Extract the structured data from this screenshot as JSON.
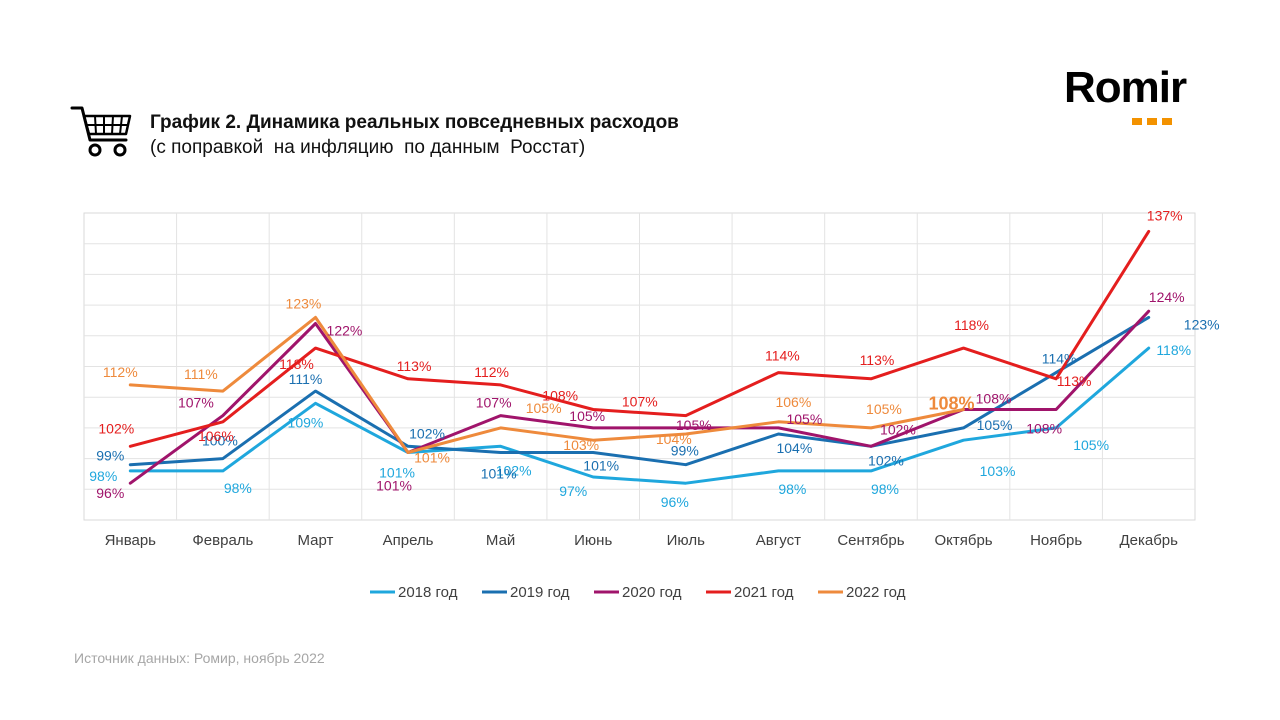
{
  "header": {
    "title_line1": "График 2. Динамика реальных повседневных расходов",
    "title_line2": "(с поправкой  на инфляцию  по данным  Росстат)"
  },
  "logo": {
    "text": "Romir",
    "dot_color": "#f39200"
  },
  "source": "Источник данных: Ромир, ноябрь 2022",
  "icons": {
    "header": "shopping-cart-icon"
  },
  "chart_data": {
    "type": "line",
    "title": "График 2. Динамика реальных повседневных расходов",
    "subtitle": "(с поправкой  на инфляцию  по данным  Росстат)",
    "xlabel": "",
    "ylabel": "",
    "ylim": [
      90,
      140
    ],
    "grid": true,
    "legend_position": "bottom",
    "categories": [
      "Январь",
      "Февраль",
      "Март",
      "Апрель",
      "Май",
      "Июнь",
      "Июль",
      "Август",
      "Сентябрь",
      "Октябрь",
      "Ноябрь",
      "Декабрь"
    ],
    "series": [
      {
        "name": "2018 год",
        "color": "#1fa7dd",
        "values": [
          98,
          98,
          109,
          101,
          102,
          97,
          96,
          98,
          98,
          103,
          105,
          118
        ],
        "labels": [
          "98%",
          "98%",
          "109%",
          "101%",
          "102%",
          "97%",
          "96%",
          "98%",
          "98%",
          "103%",
          "105%",
          "118%"
        ]
      },
      {
        "name": "2019 год",
        "color": "#1a6fb0",
        "values": [
          99,
          100,
          111,
          102,
          101,
          101,
          99,
          104,
          102,
          105,
          114,
          123
        ],
        "labels": [
          "99%",
          "100%",
          "111%",
          "102%",
          "101%",
          "101%",
          "99%",
          "104%",
          "102%",
          "105%",
          "114%",
          "123%"
        ]
      },
      {
        "name": "2020 год",
        "color": "#a0146b",
        "values": [
          96,
          107,
          122,
          101,
          107,
          105,
          105,
          105,
          102,
          108,
          108,
          124
        ],
        "labels": [
          "96%",
          "107%",
          "122%",
          "101%",
          "107%",
          "105%",
          "105%",
          "105%",
          "102%",
          "108%",
          "108%",
          "124%"
        ]
      },
      {
        "name": "2021 год",
        "color": "#e41e1e",
        "values": [
          102,
          106,
          118,
          113,
          112,
          108,
          107,
          114,
          113,
          118,
          113,
          137
        ],
        "labels": [
          "102%",
          "106%",
          "118%",
          "113%",
          "112%",
          "108%",
          "107%",
          "114%",
          "113%",
          "118%",
          "113%",
          "137%"
        ]
      },
      {
        "name": "2022 год",
        "color": "#ee8a3c",
        "values": [
          112,
          111,
          123,
          101,
          105,
          103,
          104,
          106,
          105,
          108,
          null,
          null
        ],
        "labels": [
          "112%",
          "111%",
          "123%",
          "101%",
          "105%",
          "103%",
          "104%",
          "106%",
          "105%",
          "108%",
          null,
          null
        ]
      }
    ]
  }
}
